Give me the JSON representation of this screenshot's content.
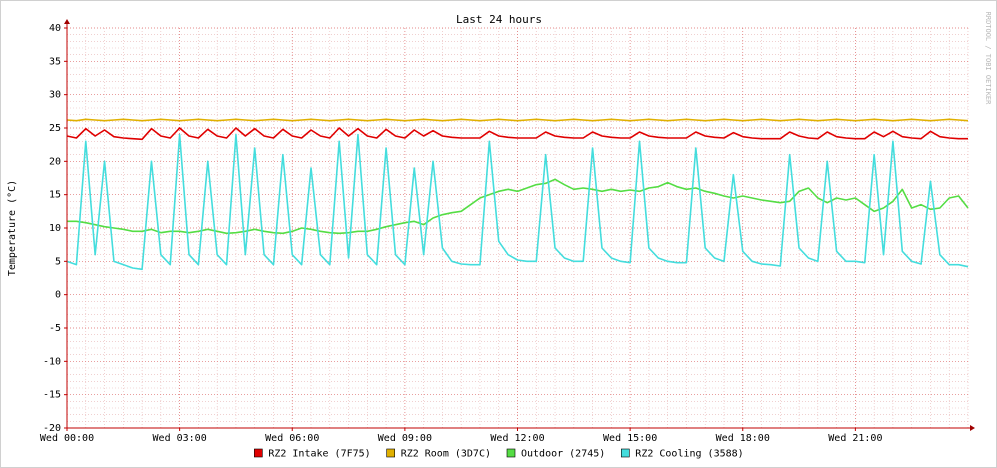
{
  "chart_data": {
    "type": "line",
    "title": "Last 24 hours",
    "y_label": "Temperature (°C)",
    "watermark": "RRDTOOL / TOBI OETIKER",
    "xlim": [
      0,
      24
    ],
    "xticks": [
      {
        "value": 0,
        "label": "Wed 00:00"
      },
      {
        "value": 3,
        "label": "Wed 03:00"
      },
      {
        "value": 6,
        "label": "Wed 06:00"
      },
      {
        "value": 9,
        "label": "Wed 09:00"
      },
      {
        "value": 12,
        "label": "Wed 12:00"
      },
      {
        "value": 15,
        "label": "Wed 15:00"
      },
      {
        "value": 18,
        "label": "Wed 18:00"
      },
      {
        "value": 21,
        "label": "Wed 21:00"
      }
    ],
    "ylim": [
      -20,
      40
    ],
    "yticks": [
      -20,
      -15,
      -10,
      -5,
      0,
      5,
      10,
      15,
      20,
      25,
      30,
      35,
      40
    ],
    "grid": true,
    "minor_grid": true,
    "legend": "bottom",
    "x": [
      0,
      0.25,
      0.5,
      0.75,
      1,
      1.25,
      1.5,
      1.75,
      2,
      2.25,
      2.5,
      2.75,
      3,
      3.25,
      3.5,
      3.75,
      4,
      4.25,
      4.5,
      4.75,
      5,
      5.25,
      5.5,
      5.75,
      6,
      6.25,
      6.5,
      6.75,
      7,
      7.25,
      7.5,
      7.75,
      8,
      8.25,
      8.5,
      8.75,
      9,
      9.25,
      9.5,
      9.75,
      10,
      10.25,
      10.5,
      10.75,
      11,
      11.25,
      11.5,
      11.75,
      12,
      12.25,
      12.5,
      12.75,
      13,
      13.25,
      13.5,
      13.75,
      14,
      14.25,
      14.5,
      14.75,
      15,
      15.25,
      15.5,
      15.75,
      16,
      16.25,
      16.5,
      16.75,
      17,
      17.25,
      17.5,
      17.75,
      18,
      18.25,
      18.5,
      18.75,
      19,
      19.25,
      19.5,
      19.75,
      20,
      20.25,
      20.5,
      20.75,
      21,
      21.25,
      21.5,
      21.75,
      22,
      22.25,
      22.5,
      22.75,
      23,
      23.25,
      23.5,
      23.75,
      24
    ],
    "series": [
      {
        "name": "RZ2 Intake (7F75)",
        "color": "#e00000",
        "values": [
          23.8,
          23.5,
          24.9,
          23.8,
          24.7,
          23.7,
          23.5,
          23.4,
          23.3,
          24.9,
          23.8,
          23.5,
          25,
          23.8,
          23.5,
          24.8,
          23.8,
          23.5,
          25,
          23.8,
          24.9,
          23.8,
          23.5,
          24.8,
          23.8,
          23.5,
          24.7,
          23.8,
          23.5,
          25,
          23.8,
          24.9,
          23.8,
          23.5,
          24.8,
          23.8,
          23.5,
          24.7,
          23.8,
          24.6,
          23.8,
          23.6,
          23.5,
          23.5,
          23.5,
          24.5,
          23.8,
          23.6,
          23.5,
          23.5,
          23.5,
          24.4,
          23.8,
          23.6,
          23.5,
          23.5,
          24.4,
          23.8,
          23.6,
          23.5,
          23.5,
          24.4,
          23.8,
          23.6,
          23.5,
          23.5,
          23.5,
          24.4,
          23.8,
          23.6,
          23.5,
          24.3,
          23.7,
          23.5,
          23.4,
          23.4,
          23.4,
          24.4,
          23.8,
          23.5,
          23.4,
          24.4,
          23.7,
          23.5,
          23.4,
          23.4,
          24.4,
          23.7,
          24.5,
          23.7,
          23.5,
          23.4,
          24.5,
          23.7,
          23.5,
          23.4,
          23.4
        ]
      },
      {
        "name": "RZ2 Room (3D7C)",
        "color": "#e0b000",
        "values": [
          26.2,
          26.1,
          26.3,
          26.2,
          26.1,
          26.2,
          26.3,
          26.2,
          26.1,
          26.2,
          26.3,
          26.2,
          26.1,
          26.2,
          26.3,
          26.2,
          26.1,
          26.2,
          26.3,
          26.2,
          26.1,
          26.2,
          26.3,
          26.2,
          26.1,
          26.2,
          26.3,
          26.2,
          26.1,
          26.2,
          26.3,
          26.2,
          26.1,
          26.2,
          26.3,
          26.2,
          26.1,
          26.2,
          26.3,
          26.2,
          26.1,
          26.2,
          26.3,
          26.2,
          26.1,
          26.2,
          26.3,
          26.2,
          26.1,
          26.2,
          26.3,
          26.2,
          26.1,
          26.2,
          26.3,
          26.2,
          26.1,
          26.2,
          26.3,
          26.2,
          26.1,
          26.2,
          26.3,
          26.2,
          26.1,
          26.2,
          26.3,
          26.2,
          26.1,
          26.2,
          26.3,
          26.2,
          26.1,
          26.2,
          26.3,
          26.2,
          26.1,
          26.2,
          26.3,
          26.2,
          26.1,
          26.2,
          26.3,
          26.2,
          26.1,
          26.2,
          26.3,
          26.2,
          26.1,
          26.2,
          26.3,
          26.2,
          26.1,
          26.2,
          26.3,
          26.2,
          26.1
        ]
      },
      {
        "name": "Outdoor (2745)",
        "color": "#55dd44",
        "values": [
          11,
          11,
          10.8,
          10.5,
          10.2,
          10,
          9.8,
          9.5,
          9.5,
          9.8,
          9.3,
          9.5,
          9.5,
          9.3,
          9.5,
          9.8,
          9.5,
          9.2,
          9.3,
          9.5,
          9.8,
          9.5,
          9.3,
          9.2,
          9.5,
          10,
          9.8,
          9.5,
          9.3,
          9.2,
          9.3,
          9.5,
          9.5,
          9.8,
          10.2,
          10.5,
          10.8,
          11,
          10.5,
          11.5,
          12,
          12.3,
          12.5,
          13.5,
          14.5,
          15,
          15.5,
          15.8,
          15.5,
          16,
          16.5,
          16.7,
          17.3,
          16.5,
          15.8,
          16,
          15.8,
          15.5,
          15.8,
          15.5,
          15.7,
          15.5,
          16,
          16.2,
          16.8,
          16.2,
          15.8,
          16,
          15.5,
          15.2,
          14.8,
          14.5,
          14.8,
          14.5,
          14.2,
          14,
          13.8,
          14,
          15.5,
          16,
          14.5,
          13.8,
          14.5,
          14.2,
          14.5,
          13.5,
          12.5,
          13,
          14,
          15.8,
          13,
          13.5,
          12.8,
          13,
          14.5,
          14.8,
          13
        ]
      },
      {
        "name": "RZ2 Cooling (3588)",
        "color": "#44dddd",
        "values": [
          5,
          4.5,
          23,
          6,
          20,
          5,
          4.5,
          4,
          3.8,
          20,
          6,
          4.5,
          24,
          6,
          4.5,
          20,
          6,
          4.5,
          24,
          6,
          22,
          6,
          4.5,
          21,
          6,
          4.5,
          19,
          6,
          4.5,
          23,
          5.5,
          24,
          6,
          4.5,
          22,
          6,
          4.5,
          19,
          6,
          20,
          7,
          5,
          4.6,
          4.5,
          4.5,
          23,
          8,
          6,
          5.2,
          5,
          5,
          21,
          7,
          5.5,
          5,
          5,
          22,
          7,
          5.5,
          5,
          4.8,
          23,
          7,
          5.5,
          5,
          4.8,
          4.8,
          22,
          7,
          5.5,
          5,
          18,
          6.5,
          5,
          4.6,
          4.5,
          4.3,
          21,
          7,
          5.5,
          5,
          20,
          6.5,
          5,
          5,
          4.8,
          21,
          6,
          23,
          6.5,
          5,
          4.6,
          17,
          6,
          4.5,
          4.5,
          4.2
        ]
      }
    ]
  }
}
